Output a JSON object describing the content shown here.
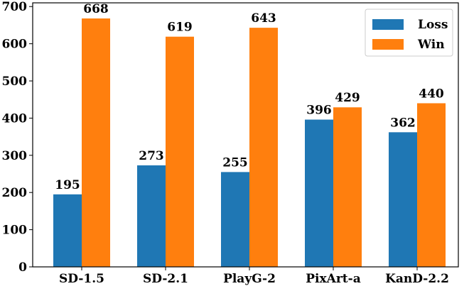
{
  "chart_data": {
    "type": "bar",
    "categories": [
      "SD-1.5",
      "SD-2.1",
      "PlayG-2",
      "PixArt-a",
      "KanD-2.2"
    ],
    "series": [
      {
        "name": "Loss",
        "values": [
          195,
          273,
          255,
          396,
          362
        ],
        "color": "#1f77b4"
      },
      {
        "name": "Win",
        "values": [
          668,
          619,
          643,
          429,
          440
        ],
        "color": "#ff7f0e"
      }
    ],
    "yticks": [
      0,
      100,
      200,
      300,
      400,
      500,
      600,
      700
    ],
    "ylim": [
      0,
      710
    ],
    "grid": false,
    "legend": "top-right",
    "data_labels": true
  }
}
